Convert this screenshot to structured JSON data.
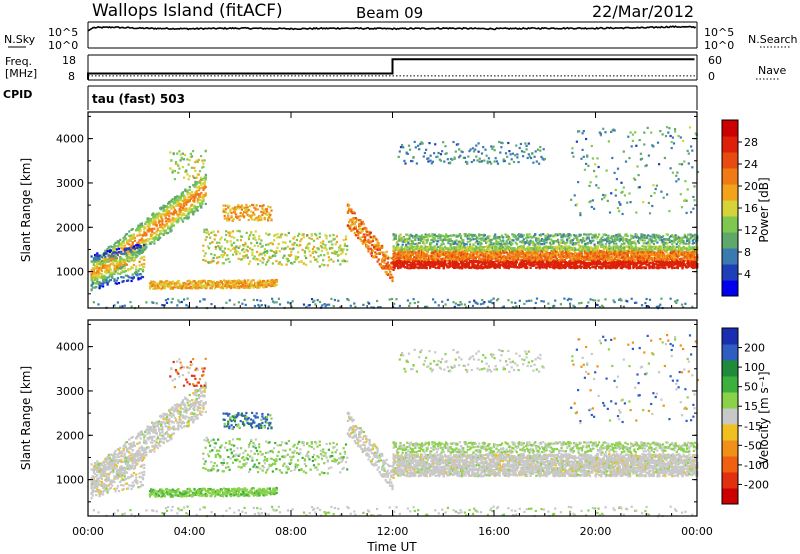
{
  "header": {
    "station": "Wallops Island (fitACF)",
    "beam": "Beam 09",
    "date": "22/Mar/2012"
  },
  "left_labels": {
    "nsky": "N.Sky",
    "freq_1": "Freq.",
    "freq_2": "[MHz]",
    "cpid": "CPID"
  },
  "right_labels": {
    "nsearch": "N.Search",
    "nave": "Nave"
  },
  "program_label": "tau (fast) 503",
  "colors": {
    "power_scale": [
      "#0000ee",
      "#1f3fb8",
      "#3a7ab0",
      "#5fa86c",
      "#7ec850",
      "#d6d23a",
      "#f2a31a",
      "#f07a14",
      "#e84a10",
      "#dd2008",
      "#cc0000"
    ],
    "velocity_scale": [
      "#1a2fb0",
      "#2e5ec0",
      "#1f8a3a",
      "#3cb03c",
      "#8ad24a",
      "#c8c8c8",
      "#f0c020",
      "#f09018",
      "#f06010",
      "#e03010",
      "#cc0000"
    ]
  },
  "chart_data": [
    {
      "type": "line",
      "name": "noise-search",
      "left_axis_label": "N.Sky",
      "left_ticks": [
        "10^5",
        "10^0"
      ],
      "right_axis_label": "N.Search",
      "right_ticks": [
        "10^5",
        "10^0"
      ],
      "x_hours": [
        0,
        0.2,
        1,
        2,
        4,
        6,
        8,
        10,
        12,
        14,
        16,
        18,
        20,
        22,
        23,
        24
      ],
      "nsky": [
        3.3,
        3.9,
        4.0,
        3.8,
        3.7,
        3.8,
        3.7,
        3.8,
        3.7,
        3.8,
        3.7,
        3.8,
        3.8,
        3.9,
        4.1,
        4.0
      ]
    },
    {
      "type": "line",
      "name": "frequency-nave",
      "left_axis_label": "Freq. [MHz]",
      "left_ticks": [
        "18",
        "8"
      ],
      "right_axis_label": "Nave",
      "right_ticks": [
        "60",
        "0"
      ],
      "segments_mhz": [
        {
          "from_hour": 0,
          "to_hour": 12,
          "value": 10.6
        },
        {
          "from_hour": 12,
          "to_hour": 24,
          "value": 16.3
        }
      ],
      "nave": [
        {
          "from_hour": 0,
          "to_hour": 24,
          "value": 10
        }
      ]
    },
    {
      "type": "heatmap",
      "name": "power",
      "ylabel": "Slant Range [km]",
      "yticks": [
        1000,
        2000,
        3000,
        4000
      ],
      "ylim": [
        180,
        4600
      ],
      "xlim_hours": [
        0,
        24
      ],
      "colorbar_label": "Power [dB]",
      "colorbar_ticks": [
        "4",
        "8",
        "12",
        "16",
        "20",
        "24",
        "28"
      ],
      "colorbar_range": [
        0,
        30
      ]
    },
    {
      "type": "heatmap",
      "name": "velocity",
      "ylabel": "Slant Range [km]",
      "yticks": [
        1000,
        2000,
        3000,
        4000
      ],
      "ylim": [
        180,
        4600
      ],
      "xlim_hours": [
        0,
        24
      ],
      "colorbar_label": "Velocity [m s⁻¹]",
      "colorbar_ticks": [
        "200",
        "100",
        "50",
        "15",
        "-15",
        "-50",
        "-100",
        "-200"
      ],
      "colorbar_range": [
        -250,
        250
      ]
    }
  ],
  "xaxis": {
    "label": "Time UT",
    "ticks": [
      "00:00",
      "04:00",
      "08:00",
      "12:00",
      "16:00",
      "20:00",
      "00:00"
    ],
    "tick_hours": [
      0,
      4,
      8,
      12,
      16,
      20,
      24
    ]
  }
}
